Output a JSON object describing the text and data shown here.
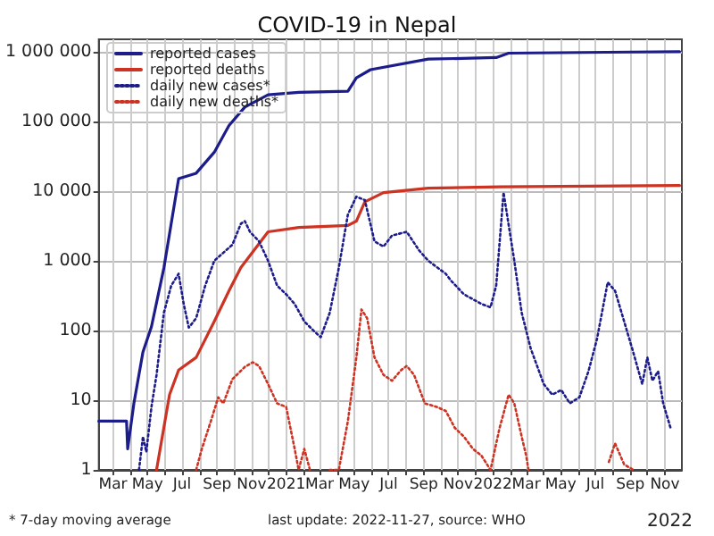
{
  "chart_data": {
    "type": "line",
    "title": "COVID-19 in Nepal",
    "xlabel": "2022",
    "annotations": [
      "* 7-day moving average",
      "last update: 2022-11-27, source: WHO"
    ],
    "xlim": [
      "2020-02-05",
      "2022-12-01"
    ],
    "xticks": [
      {
        "value": "2020-03",
        "label": "Mar"
      },
      {
        "value": "2020-04",
        "label": null
      },
      {
        "value": "2020-05",
        "label": "May"
      },
      {
        "value": "2020-06",
        "label": null
      },
      {
        "value": "2020-07",
        "label": "Jul"
      },
      {
        "value": "2020-08",
        "label": null
      },
      {
        "value": "2020-09",
        "label": "Sep"
      },
      {
        "value": "2020-10",
        "label": null
      },
      {
        "value": "2020-11",
        "label": "Nov"
      },
      {
        "value": "2020-12",
        "label": null
      },
      {
        "value": "2021-01",
        "label": "2021"
      },
      {
        "value": "2021-02",
        "label": null
      },
      {
        "value": "2021-03",
        "label": "Mar"
      },
      {
        "value": "2021-04",
        "label": null
      },
      {
        "value": "2021-05",
        "label": "May"
      },
      {
        "value": "2021-06",
        "label": null
      },
      {
        "value": "2021-07",
        "label": "Jul"
      },
      {
        "value": "2021-08",
        "label": null
      },
      {
        "value": "2021-09",
        "label": "Sep"
      },
      {
        "value": "2021-10",
        "label": null
      },
      {
        "value": "2021-11",
        "label": "Nov"
      },
      {
        "value": "2021-12",
        "label": null
      },
      {
        "value": "2022-01",
        "label": "2022"
      },
      {
        "value": "2022-02",
        "label": null
      },
      {
        "value": "2022-03",
        "label": "Mar"
      },
      {
        "value": "2022-04",
        "label": null
      },
      {
        "value": "2022-05",
        "label": "May"
      },
      {
        "value": "2022-06",
        "label": null
      },
      {
        "value": "2022-07",
        "label": "Jul"
      },
      {
        "value": "2022-08",
        "label": null
      },
      {
        "value": "2022-09",
        "label": "Sep"
      },
      {
        "value": "2022-10",
        "label": null
      },
      {
        "value": "2022-11",
        "label": "Nov"
      }
    ],
    "ylim": [
      1,
      1500000
    ],
    "yticks": [
      1,
      10,
      100,
      {
        "value": 1000,
        "label": "1 000"
      },
      {
        "value": 10000,
        "label": "10 000"
      },
      {
        "value": 100000,
        "label": "100 000"
      },
      {
        "value": 1000000,
        "label": "1 000 000"
      }
    ],
    "log": true,
    "grid": true,
    "legend": "top left",
    "marker": "none",
    "series": [
      {
        "name": "reported cases",
        "color": "#1c1c8a",
        "line_style": "solid",
        "x": [
          "2020-02-05",
          "2020-03-25",
          "2020-03-27",
          "2020-04-07",
          "2020-04-23",
          "2020-05-08",
          "2020-05-30",
          "2020-06-25",
          "2020-07-26",
          "2020-08-27",
          "2020-09-22",
          "2020-10-20",
          "2020-11-30",
          "2021-01-23",
          "2021-04-20",
          "2021-05-05",
          "2021-05-30",
          "2021-09-09",
          "2022-01-07",
          "2022-01-29",
          "2022-11-27"
        ],
        "values": [
          5,
          5,
          2,
          9,
          49,
          113,
          790,
          15000,
          18000,
          36000,
          87000,
          160000,
          240000,
          260000,
          270000,
          420000,
          550000,
          780000,
          820000,
          950000,
          1000000
        ]
      },
      {
        "name": "reported deaths",
        "color": "#cc3322",
        "line_style": "solid",
        "x": [
          "2020-05-17",
          "2020-06-09",
          "2020-06-25",
          "2020-07-26",
          "2020-08-27",
          "2020-09-22",
          "2020-10-13",
          "2020-11-30",
          "2021-01-23",
          "2021-04-20",
          "2021-05-05",
          "2021-05-20",
          "2021-06-22",
          "2021-09-09",
          "2022-01-13",
          "2022-11-27"
        ],
        "values": [
          1,
          12,
          27,
          41,
          135,
          370,
          800,
          2600,
          3000,
          3200,
          3700,
          7000,
          9500,
          11000,
          11500,
          12000
        ]
      },
      {
        "name": "daily new cases*",
        "color": "#1c1c8a",
        "line_style": "dotted",
        "x": [
          "2020-04-16",
          "2020-04-23",
          "2020-04-29",
          "2020-05-08",
          "2020-05-17",
          "2020-05-30",
          "2020-06-12",
          "2020-06-25",
          "2020-07-04",
          "2020-07-13",
          "2020-07-26",
          "2020-08-11",
          "2020-08-27",
          "2020-09-28",
          "2020-10-13",
          "2020-10-20",
          "2020-10-29",
          "2020-11-14",
          "2020-11-30",
          "2020-12-16",
          "2021-01-01",
          "2021-01-16",
          "2021-02-02",
          "2021-02-18",
          "2021-03-03",
          "2021-03-19",
          "2021-04-04",
          "2021-04-20",
          "2021-05-05",
          "2021-05-20",
          "2021-06-06",
          "2021-06-22",
          "2021-07-07",
          "2021-08-02",
          "2021-08-24",
          "2021-09-09",
          "2021-10-10",
          "2021-10-19",
          "2021-11-11",
          "2021-12-12",
          "2021-12-28",
          "2022-01-07",
          "2022-01-20",
          "2022-02-08",
          "2022-02-21",
          "2022-03-09",
          "2022-04-01",
          "2022-04-16",
          "2022-05-02",
          "2022-05-17",
          "2022-06-03",
          "2022-06-19",
          "2022-07-04",
          "2022-07-23",
          "2022-08-05",
          "2022-08-21",
          "2022-09-06",
          "2022-09-22",
          "2022-10-01",
          "2022-10-10",
          "2022-10-20",
          "2022-10-29",
          "2022-11-11"
        ],
        "values": [
          1,
          3,
          1.8,
          8,
          23,
          180,
          440,
          650,
          240,
          110,
          150,
          440,
          1000,
          1700,
          3400,
          3700,
          2600,
          1900,
          1000,
          440,
          330,
          240,
          135,
          100,
          80,
          180,
          790,
          4600,
          8300,
          7400,
          1900,
          1600,
          2300,
          2600,
          1400,
          1000,
          650,
          520,
          330,
          240,
          215,
          440,
          9500,
          1000,
          180,
          55,
          17,
          12,
          14,
          9,
          11,
          26,
          75,
          490,
          370,
          135,
          49,
          17,
          41,
          19,
          26,
          9,
          4
        ]
      },
      {
        "name": "daily new deaths*",
        "color": "#cc3322",
        "line_style": "dotted",
        "x": [
          "2020-07-26",
          "2020-08-05",
          "2020-08-21",
          "2020-09-03",
          "2020-09-12",
          "2020-09-28",
          "2020-10-20",
          "2020-11-03",
          "2020-11-14",
          "2020-11-30",
          "2020-12-16",
          "2021-01-01",
          "2021-01-16",
          "2021-01-23",
          "2021-02-02",
          "2021-02-12",
          "2021-02-20",
          "2021-03-19",
          "2021-04-04",
          "2021-04-20",
          "2021-05-05",
          "2021-05-14",
          "2021-05-24",
          "2021-06-06",
          "2021-06-22",
          "2021-07-07",
          "2021-07-23",
          "2021-08-02",
          "2021-08-15",
          "2021-09-03",
          "2021-09-24",
          "2021-10-10",
          "2021-10-26",
          "2021-11-11",
          "2021-11-27",
          "2021-12-12",
          "2021-12-28",
          "2022-01-13",
          "2022-01-29",
          "2022-02-08",
          "2022-02-21",
          "2022-03-01",
          "2022-03-05",
          "2022-03-20",
          "2022-07-25",
          "2022-08-05",
          "2022-08-21",
          "2022-09-06"
        ],
        "values": [
          1,
          2,
          5,
          11,
          9,
          20,
          30,
          35,
          31,
          17,
          9,
          8,
          2,
          1,
          2,
          1,
          null,
          1,
          1,
          5,
          41,
          200,
          150,
          41,
          23,
          19,
          27,
          31,
          23,
          9,
          8,
          7,
          4,
          3,
          2,
          1.6,
          1,
          4,
          12,
          9,
          3,
          1.6,
          1,
          null,
          1.3,
          2.4,
          1.2,
          1
        ]
      }
    ]
  }
}
